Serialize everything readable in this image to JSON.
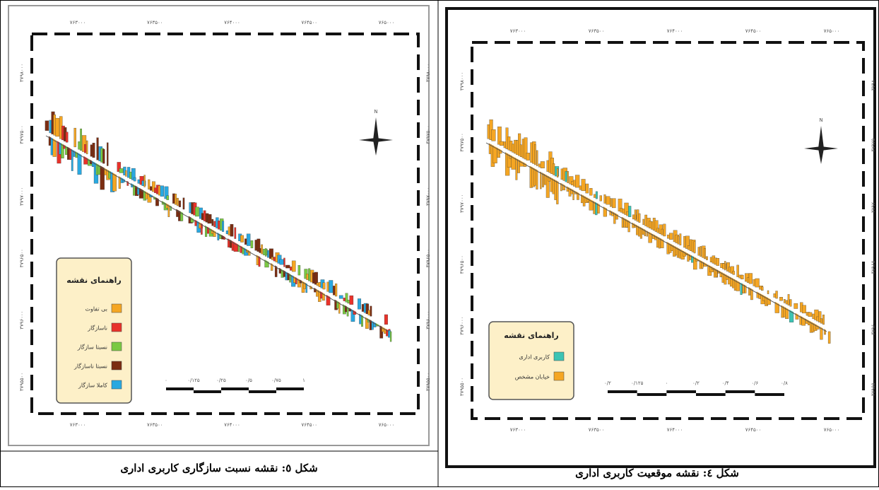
{
  "figures": [
    {
      "caption": "شکل ٥: نقشه نسبت سازگاری کاربری اداری",
      "x_labels": [
        "۷۶۳۰۰۰",
        "۷۶۳۵۰۰",
        "۷۶۴۰۰۰",
        "۷۶۴۵۰۰",
        "۷۶۵۰۰۰"
      ],
      "y_labels": [
        "۳۷۹۸۰۰۰",
        "۳۷۹۷۵۰۰",
        "۳۷۹۷۰۰۰",
        "۳۷۹۶۵۰۰",
        "۳۷۹۶۰۰۰",
        "۳۷۹۵۵۰۰"
      ],
      "legend": {
        "title": "راهنمای نقشه",
        "items": [
          {
            "label": "بی تفاوت",
            "color": "#f5a623"
          },
          {
            "label": "ناسازگار",
            "color": "#e8322a"
          },
          {
            "label": "نسبتا سازگار",
            "color": "#7ac943"
          },
          {
            "label": "نسبتا ناسازگار",
            "color": "#7b2d12"
          },
          {
            "label": "کاملا سازگار",
            "color": "#29a8e0"
          }
        ]
      },
      "scale_labels": [
        "۰",
        "۰/۱۲۵",
        "۰/۲۵",
        "۰/۵",
        "۰/۷۵",
        "۱"
      ]
    },
    {
      "caption": "شکل ٤: نقشه موقعیت کاربری اداری",
      "x_labels": [
        "۷۶۳۰۰۰",
        "۷۶۳۵۰۰",
        "۷۶۴۰۰۰",
        "۷۶۴۵۰۰",
        "۷۶۵۰۰۰"
      ],
      "y_labels": [
        "۳۷۹۸۰۰۰",
        "۳۷۹۷۵۰۰",
        "۳۷۹۷۰۰۰",
        "۳۷۹۶۵۰۰",
        "۳۷۹۶۰۰۰",
        "۳۷۹۵۵۰۰"
      ],
      "legend": {
        "title": "راهنمای نقشه",
        "items": [
          {
            "label": "کاربری اداری",
            "color": "#3cc4b4"
          },
          {
            "label": "خیابان مشخص",
            "color": "#f5a623"
          }
        ]
      },
      "scale_labels": [
        "۰/۲",
        "۰/۱۲۵",
        "۰",
        "۰/۲",
        "۰/۴",
        "۰/۶",
        "۰/۸"
      ]
    }
  ]
}
